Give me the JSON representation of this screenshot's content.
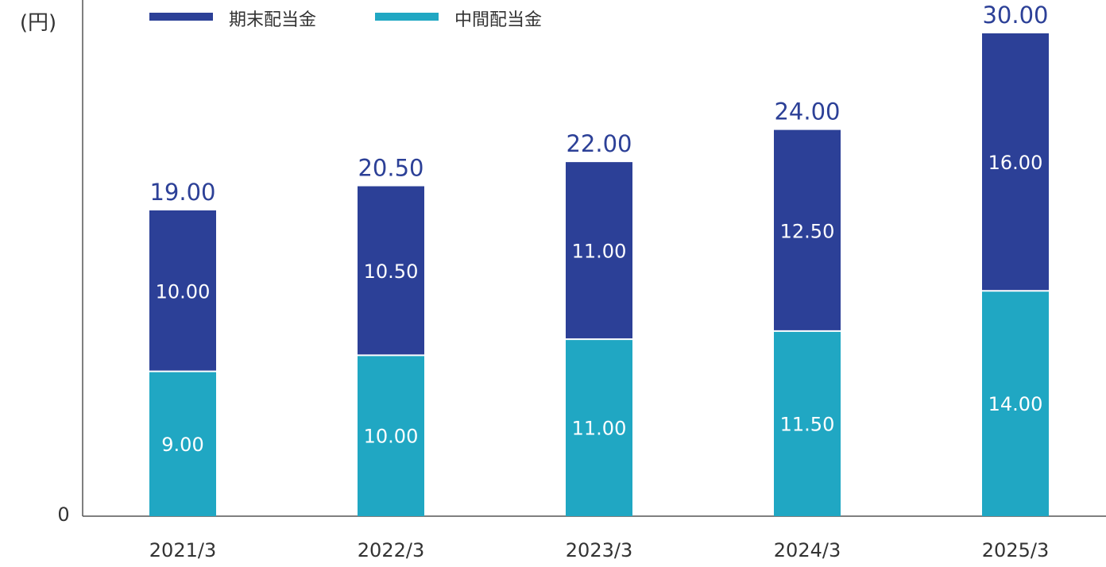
{
  "chart_data": {
    "type": "bar",
    "stacked": true,
    "unit_label": "(円)",
    "categories": [
      "2021/3",
      "2022/3",
      "2023/3",
      "2024/3",
      "2025/3"
    ],
    "series": [
      {
        "name": "中間配当金",
        "values": [
          9.0,
          10.0,
          11.0,
          11.5,
          14.0
        ],
        "color": "#20a7c3",
        "value_labels": [
          "9.00",
          "10.00",
          "11.00",
          "11.50",
          "14.00"
        ]
      },
      {
        "name": "期末配当金",
        "values": [
          10.0,
          10.5,
          11.0,
          12.5,
          16.0
        ],
        "color": "#2c4097",
        "value_labels": [
          "10.00",
          "10.50",
          "11.00",
          "12.50",
          "16.00"
        ]
      }
    ],
    "totals": [
      19.0,
      20.5,
      22.0,
      24.0,
      30.0
    ],
    "total_labels": [
      "19.00",
      "20.50",
      "22.00",
      "24.00",
      "30.00"
    ],
    "total_label_color": "#2c4097",
    "y_min_label": "0",
    "ylim": [
      0,
      30
    ],
    "grid": false,
    "legend_position": "top",
    "legend_order": [
      "期末配当金",
      "中間配当金"
    ]
  }
}
